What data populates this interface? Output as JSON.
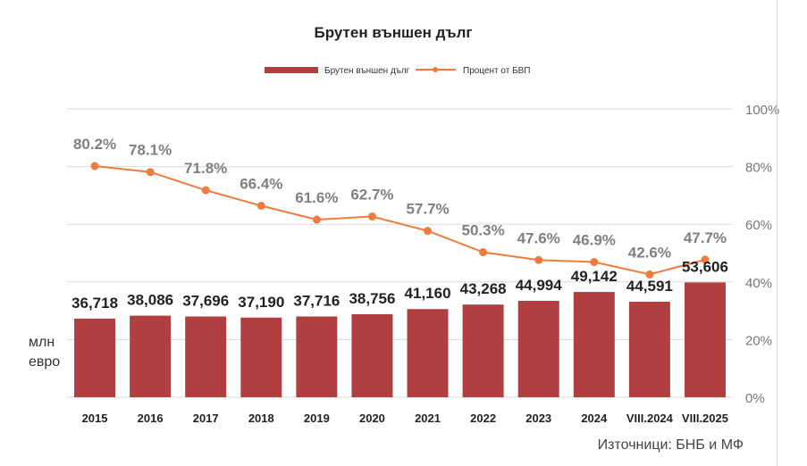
{
  "chart_data": {
    "type": "bar+line",
    "title": "Брутен външен дълг",
    "categories": [
      "2015",
      "2016",
      "2017",
      "2018",
      "2019",
      "2020",
      "2021",
      "2022",
      "2023",
      "2024",
      "VIII.2024",
      "VIII.2025"
    ],
    "series": [
      {
        "name": "Брутен външен дълг",
        "type": "bar",
        "axis": "left",
        "color": "#b0403f",
        "values": [
          36718,
          38086,
          37696,
          37190,
          37716,
          38756,
          41160,
          43268,
          44994,
          49142,
          44591,
          53606
        ],
        "labels": [
          "36,718",
          "38,086",
          "37,696",
          "37,190",
          "37,716",
          "38,756",
          "41,160",
          "43,268",
          "44,994",
          "49,142",
          "44,591",
          "53,606"
        ]
      },
      {
        "name": "Процент от БВП",
        "type": "line",
        "axis": "right",
        "color": "#f07b3f",
        "values": [
          80.2,
          78.1,
          71.8,
          66.4,
          61.6,
          62.7,
          57.7,
          50.3,
          47.6,
          46.9,
          42.6,
          47.7
        ],
        "labels": [
          "80.2%",
          "78.1%",
          "71.8%",
          "66.4%",
          "61.6%",
          "62.7%",
          "57.7%",
          "50.3%",
          "47.6%",
          "46.9%",
          "42.6%",
          "47.7%"
        ]
      }
    ],
    "ylabel_left": [
      "млн",
      "евро"
    ],
    "ylim_left": [
      0,
      134600
    ],
    "ylim_right": [
      0,
      100
    ],
    "right_ticks": [
      "0%",
      "20%",
      "40%",
      "60%",
      "80%",
      "100%"
    ],
    "grid": true,
    "legend": "top-center",
    "source": "Източници: БНБ и МФ"
  }
}
